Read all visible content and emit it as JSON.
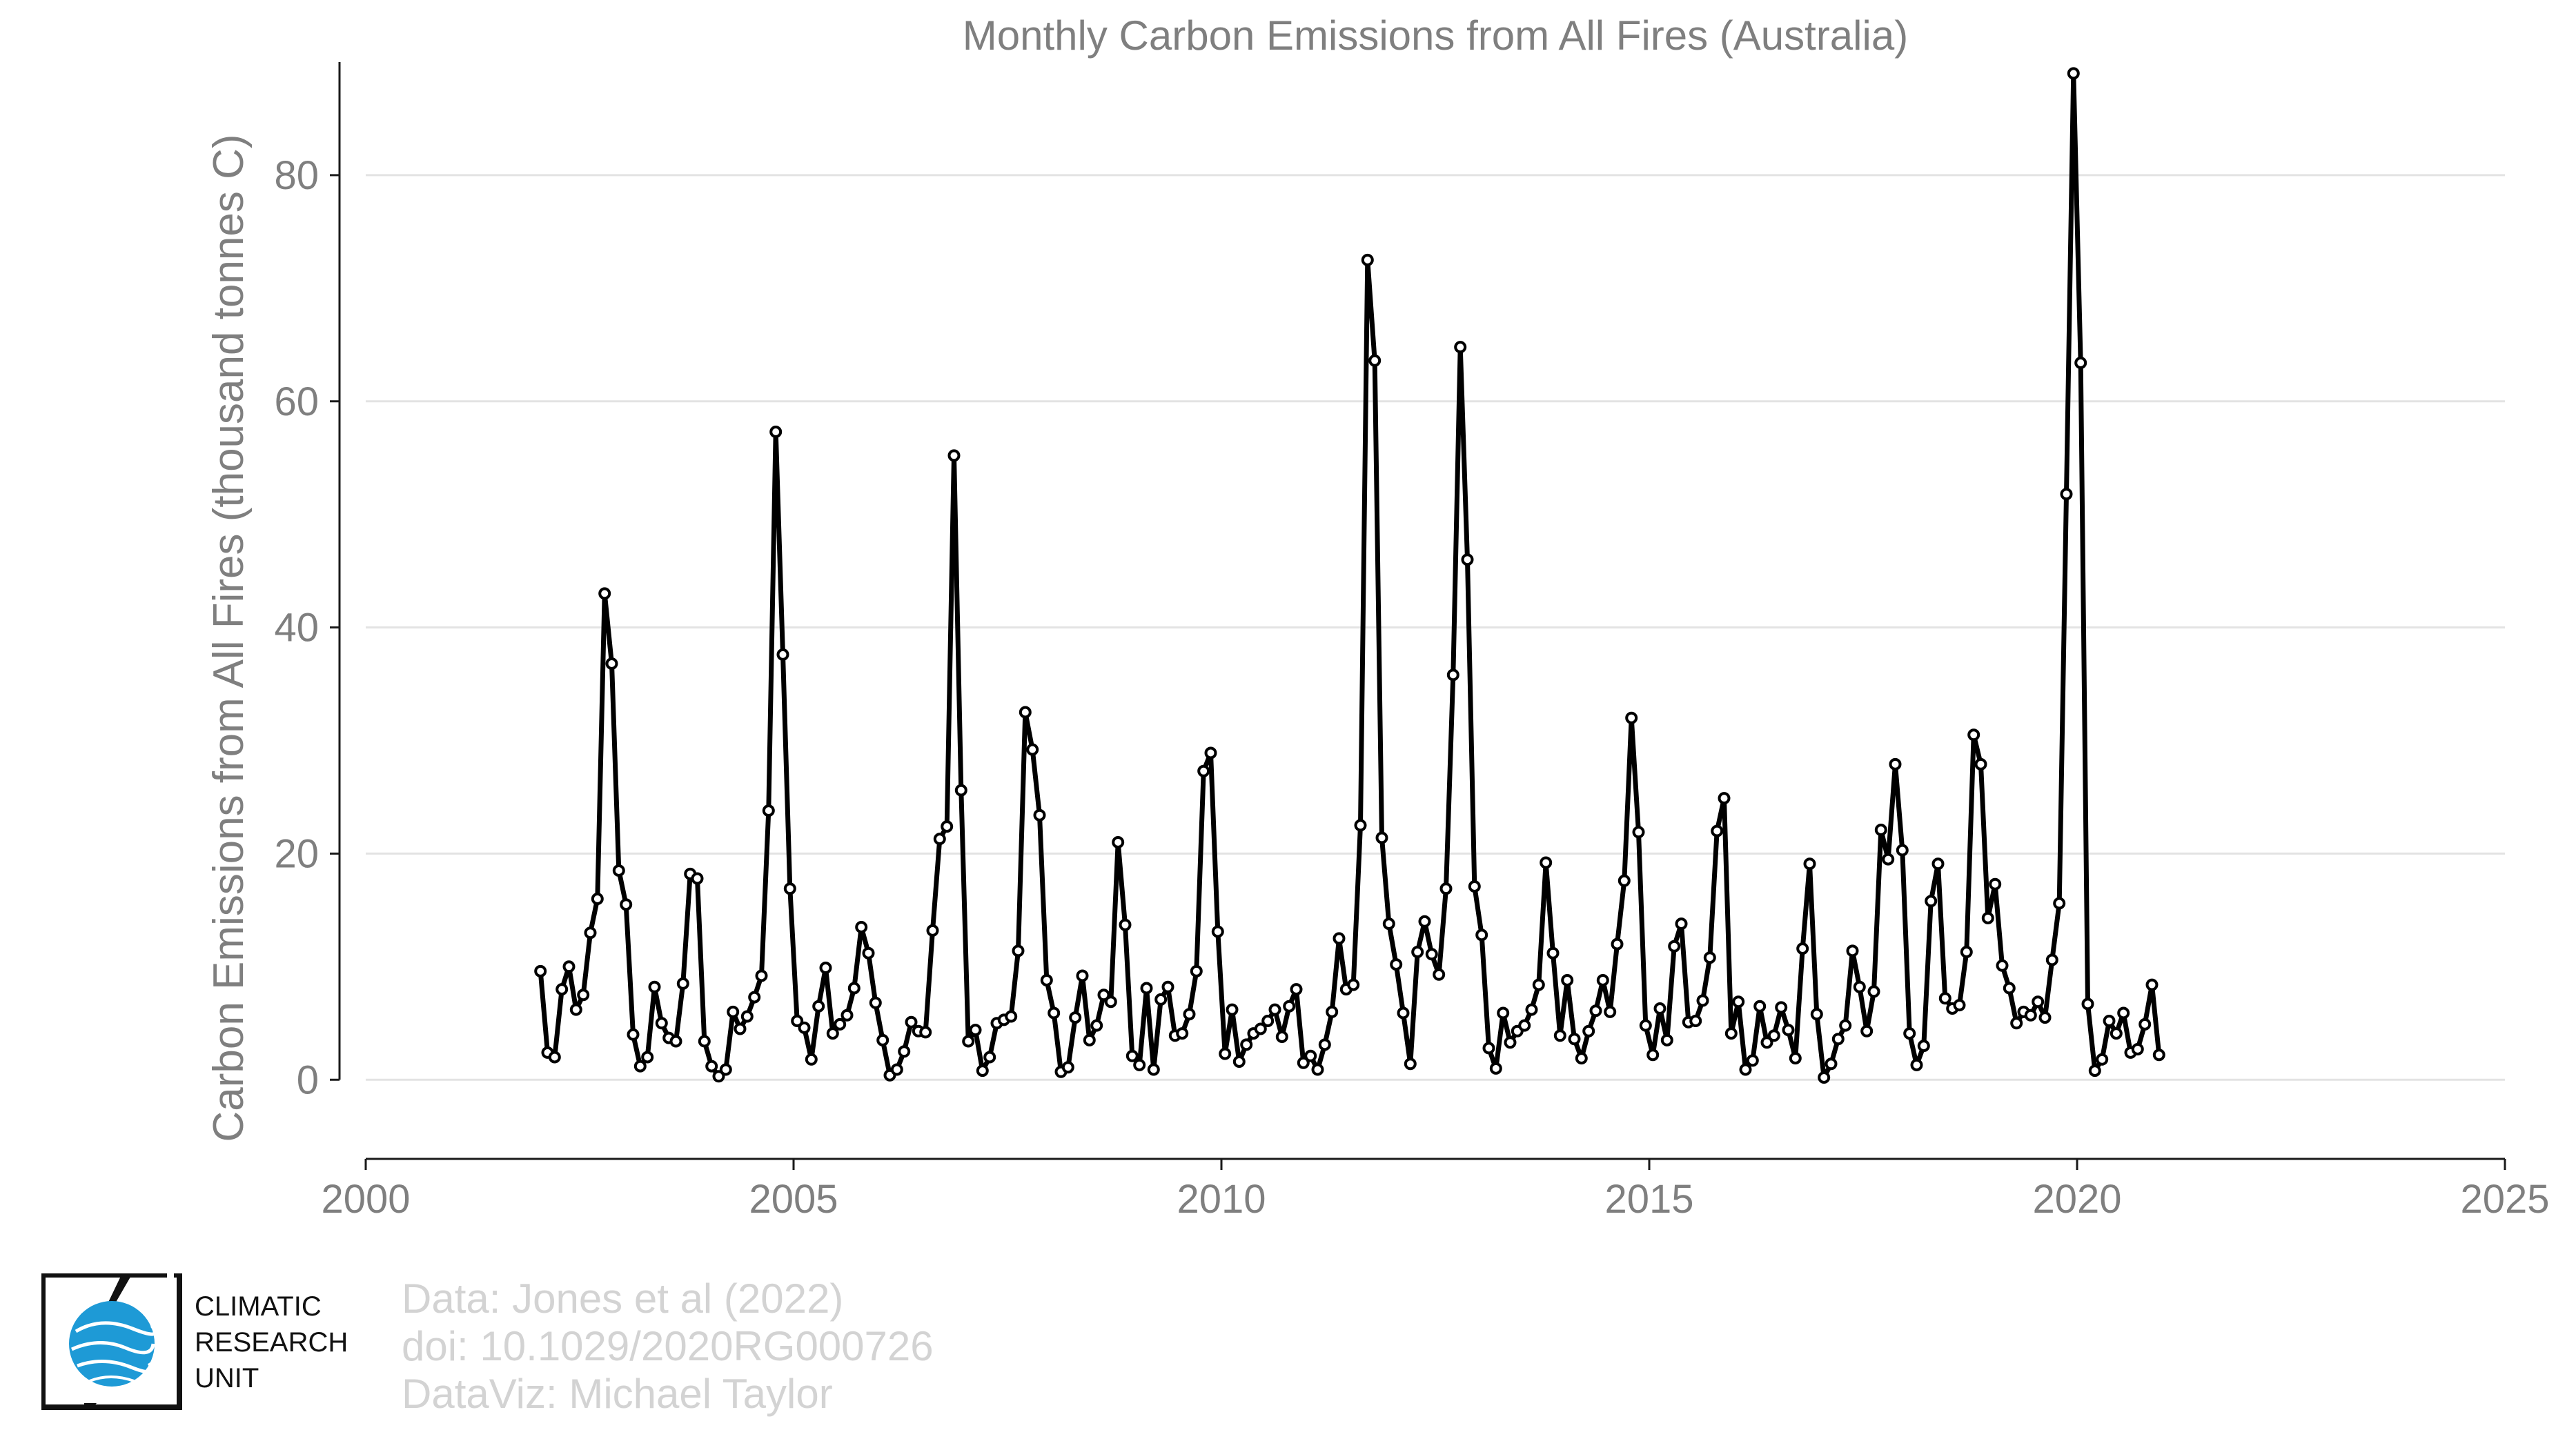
{
  "chart_data": {
    "type": "line",
    "title": "Monthly Carbon Emissions from All Fires (Australia)",
    "xlabel": "",
    "ylabel": "Carbon Emissions from All Fires (thousand tonnes C)",
    "xlim": [
      2000,
      2025
    ],
    "ylim": [
      -7,
      90
    ],
    "x_ticks": [
      "2000",
      "2005",
      "2010",
      "2015",
      "2020",
      "2025"
    ],
    "y_ticks": [
      "0",
      "20",
      "40",
      "60",
      "80"
    ],
    "grid": "horizontal",
    "legend": "none",
    "line_color": "#000000",
    "start_year": 2002,
    "series": [
      {
        "values": [
          9.6,
          2.4,
          2.0,
          8.0,
          10.0,
          6.2,
          7.5,
          13.0,
          16.0,
          43.0,
          36.8,
          18.5,
          15.5,
          4.0,
          1.2,
          2.0,
          8.2,
          5.0,
          3.7,
          3.4,
          8.5,
          18.2,
          17.8,
          3.4,
          1.2,
          0.3,
          0.9,
          6.0,
          4.5,
          5.6,
          7.3,
          9.2,
          23.8,
          57.3,
          37.6,
          16.9,
          5.2,
          4.6,
          1.8,
          6.5,
          9.9,
          4.1,
          4.9,
          5.7,
          8.1,
          13.5,
          11.2,
          6.8,
          3.5,
          0.4,
          0.9,
          2.5,
          5.1,
          4.3,
          4.2,
          13.2,
          21.3,
          22.4,
          55.2,
          25.6,
          3.4,
          4.4,
          0.8,
          2.0,
          5.0,
          5.3,
          5.6,
          11.4,
          32.5,
          29.2,
          23.4,
          8.8,
          5.9,
          0.7,
          1.1,
          5.5,
          9.2,
          3.5,
          4.8,
          7.5,
          6.9,
          21.0,
          13.7,
          2.1,
          1.3,
          8.1,
          0.9,
          7.1,
          8.2,
          3.9,
          4.1,
          5.8,
          9.6,
          27.3,
          28.9,
          13.1,
          2.3,
          6.2,
          1.6,
          3.1,
          4.1,
          4.5,
          5.2,
          6.2,
          3.8,
          6.5,
          8.0,
          1.5,
          2.1,
          0.9,
          3.1,
          6.0,
          12.5,
          8.0,
          8.4,
          22.5,
          72.5,
          63.6,
          21.4,
          13.8,
          10.2,
          5.9,
          1.4,
          11.3,
          14.0,
          11.1,
          9.3,
          16.9,
          35.8,
          64.8,
          46.0,
          17.1,
          12.8,
          2.8,
          1.0,
          5.9,
          3.3,
          4.3,
          4.8,
          6.2,
          8.4,
          19.2,
          11.2,
          3.9,
          8.8,
          3.6,
          1.9,
          4.3,
          6.1,
          8.8,
          6.0,
          12.0,
          17.6,
          32.0,
          21.9,
          4.8,
          2.2,
          6.3,
          3.5,
          11.8,
          13.8,
          5.1,
          5.2,
          7.0,
          10.8,
          22.0,
          24.9,
          4.1,
          6.9,
          0.9,
          1.7,
          6.5,
          3.3,
          3.9,
          6.4,
          4.4,
          1.9,
          11.6,
          19.1,
          5.8,
          0.2,
          1.4,
          3.6,
          4.8,
          11.4,
          8.2,
          4.3,
          7.8,
          22.1,
          19.5,
          27.9,
          20.3,
          4.1,
          1.3,
          3.0,
          15.8,
          19.1,
          7.2,
          6.3,
          6.6,
          11.3,
          30.5,
          27.9,
          14.3,
          17.3,
          10.1,
          8.1,
          5.0,
          6.0,
          5.7,
          6.9,
          5.5,
          10.6,
          15.6,
          51.8,
          89.0,
          63.4,
          6.7,
          0.8,
          1.8,
          5.2,
          4.1,
          5.9,
          2.4,
          2.7,
          4.9,
          8.4,
          2.2
        ]
      }
    ]
  },
  "logo": {
    "name": "cru-globe-logo",
    "line1": "CLIMATIC",
    "line2": "RESEARCH",
    "line3": "UNIT",
    "globe_color": "#1e9ad6"
  },
  "source": {
    "line1": "Data: Jones et al (2022)",
    "line2": "doi: 10.1029/2020RG000726",
    "line3": "DataViz: Michael Taylor"
  }
}
